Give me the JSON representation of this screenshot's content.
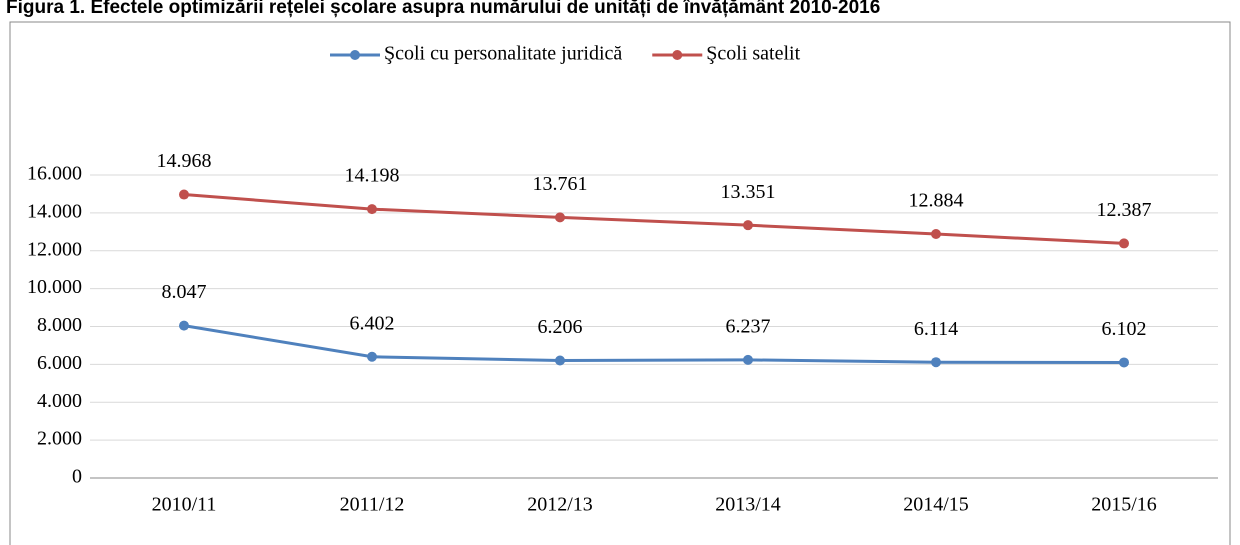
{
  "chart_data": {
    "type": "line",
    "title": "Figura 1. Efectele optimizării rețelei școlare asupra numărului de unități de învățământ 2010-2016",
    "categories": [
      "2010/11",
      "2011/12",
      "2012/13",
      "2013/14",
      "2014/15",
      "2015/16"
    ],
    "series": [
      {
        "name": "Şcoli cu personalitate juridică",
        "color": "#4f81bd",
        "values": [
          8047,
          6402,
          6206,
          6237,
          6114,
          6102
        ],
        "value_labels": [
          "8.047",
          "6.402",
          "6.206",
          "6.237",
          "6.114",
          "6.102"
        ]
      },
      {
        "name": "Şcoli satelit",
        "color": "#c0504d",
        "values": [
          14968,
          14198,
          13761,
          13351,
          12884,
          12387
        ],
        "value_labels": [
          "14.968",
          "14.198",
          "13.761",
          "13.351",
          "12.884",
          "12.387"
        ]
      }
    ],
    "ylim": [
      0,
      16000
    ],
    "yticks": [
      0,
      {
        "value": 2000,
        "label": "2.000"
      },
      {
        "value": 4000,
        "label": "4.000"
      },
      {
        "value": 6000,
        "label": "6.000"
      },
      {
        "value": 8000,
        "label": "8.000"
      },
      {
        "value": 10000,
        "label": "10.000"
      },
      {
        "value": 12000,
        "label": "12.000"
      },
      {
        "value": 14000,
        "label": "14.000"
      },
      {
        "value": 16000,
        "label": "16.000"
      }
    ],
    "grid": true,
    "legend": "top"
  }
}
